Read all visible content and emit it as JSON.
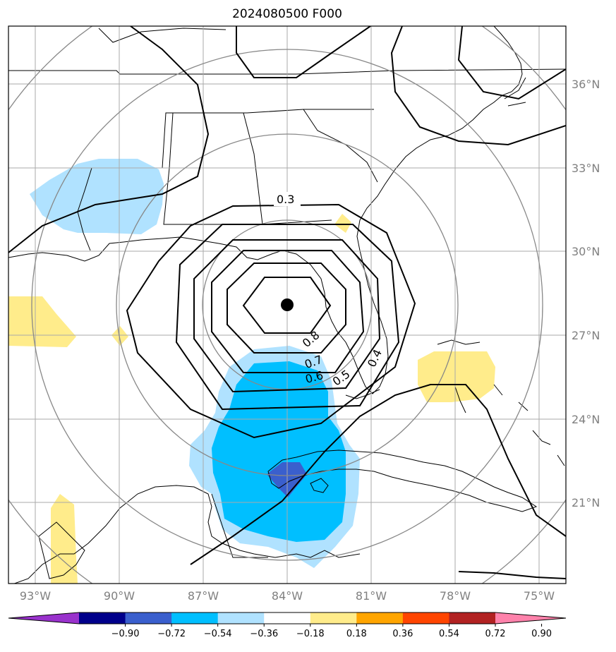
{
  "title": "2024080500 F000",
  "lat_labels": [
    "36°N",
    "33°N",
    "30°N",
    "27°N",
    "24°N",
    "21°N"
  ],
  "lon_labels": [
    "93°W",
    "90°W",
    "87°W",
    "84°W",
    "81°W",
    "78°W",
    "75°W"
  ],
  "contour_labels": [
    "0.3",
    "0.4",
    "0.5",
    "0.6",
    "0.7",
    "0.8"
  ],
  "colorbar": {
    "ticks": [
      "−0.90",
      "−0.72",
      "−0.54",
      "−0.36",
      "−0.18",
      "0.18",
      "0.36",
      "0.54",
      "0.72",
      "0.90"
    ],
    "colors": [
      "#9932cc",
      "#00008b",
      "#3a5fcd",
      "#00bfff",
      "#b0e2ff",
      "#ffffff",
      "#ffec8b",
      "#ffa500",
      "#ff4500",
      "#b22222",
      "#ff82ab"
    ]
  },
  "fill_colors": {
    "neg_light": "#b0e2ff",
    "neg_mid": "#00bfff",
    "neg_strong": "#3a5fcd",
    "pos_light": "#ffec8b"
  },
  "center_marker": "storm-center-dot"
}
